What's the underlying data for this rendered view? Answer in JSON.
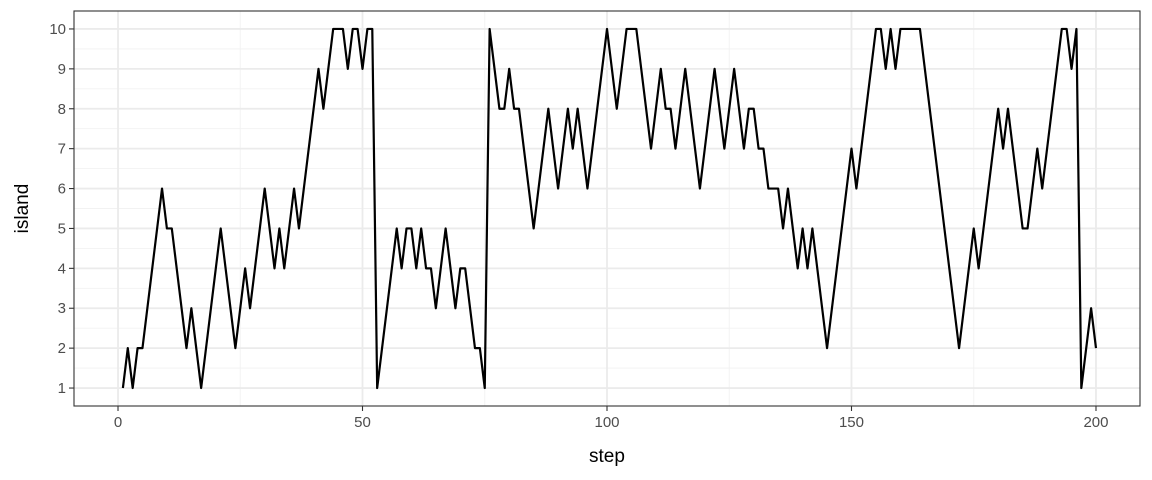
{
  "chart_data": {
    "type": "line",
    "xlabel": "step",
    "ylabel": "island",
    "xlim": [
      -9,
      209
    ],
    "ylim": [
      0.55,
      10.45
    ],
    "x_ticks": [
      0,
      50,
      100,
      150,
      200
    ],
    "y_ticks": [
      1,
      2,
      3,
      4,
      5,
      6,
      7,
      8,
      9,
      10
    ],
    "grid": true,
    "legend": "none",
    "line_color": "#000000",
    "series": [
      {
        "x": [
          1,
          2,
          3,
          4,
          5,
          6,
          7,
          8,
          9,
          10,
          11,
          12,
          13,
          14,
          15,
          16,
          17,
          18,
          19,
          20,
          21,
          22,
          23,
          24,
          25,
          26,
          27,
          28,
          29,
          30,
          31,
          32,
          33,
          34,
          35,
          36,
          37,
          38,
          39,
          40,
          41,
          42,
          43,
          44,
          45,
          46,
          47,
          48,
          49,
          50,
          51,
          52,
          53,
          54,
          55,
          56,
          57,
          58,
          59,
          60,
          61,
          62,
          63,
          64,
          65,
          66,
          67,
          68,
          69,
          70,
          71,
          72,
          73,
          74,
          75,
          76,
          77,
          78,
          79,
          80,
          81,
          82,
          83,
          84,
          85,
          86,
          87,
          88,
          89,
          90,
          91,
          92,
          93,
          94,
          95,
          96,
          97,
          98,
          99,
          100,
          101,
          102,
          103,
          104,
          105,
          106,
          107,
          108,
          109,
          110,
          111,
          112,
          113,
          114,
          115,
          116,
          117,
          118,
          119,
          120,
          121,
          122,
          123,
          124,
          125,
          126,
          127,
          128,
          129,
          130,
          131,
          132,
          133,
          134,
          135,
          136,
          137,
          138,
          139,
          140,
          141,
          142,
          143,
          144,
          145,
          146,
          147,
          148,
          149,
          150,
          151,
          152,
          153,
          154,
          155,
          156,
          157,
          158,
          159,
          160,
          161,
          162,
          163,
          164,
          165,
          166,
          167,
          168,
          169,
          170,
          171,
          172,
          173,
          174,
          175,
          176,
          177,
          178,
          179,
          180,
          181,
          182,
          183,
          184,
          185,
          186,
          187,
          188,
          189,
          190,
          191,
          192,
          193,
          194,
          195,
          196,
          197,
          198,
          199,
          200
        ],
        "values": [
          1,
          2,
          1,
          2,
          2,
          3,
          4,
          5,
          6,
          5,
          5,
          4,
          3,
          2,
          3,
          2,
          1,
          2,
          3,
          4,
          5,
          4,
          3,
          2,
          3,
          4,
          3,
          4,
          5,
          6,
          5,
          4,
          5,
          4,
          5,
          6,
          5,
          6,
          7,
          8,
          9,
          8,
          9,
          10,
          10,
          10,
          9,
          10,
          10,
          9,
          10,
          10,
          1,
          2,
          3,
          4,
          5,
          4,
          5,
          5,
          4,
          5,
          4,
          4,
          3,
          4,
          5,
          4,
          3,
          4,
          4,
          3,
          2,
          2,
          1,
          10,
          9,
          8,
          8,
          9,
          8,
          8,
          7,
          6,
          5,
          6,
          7,
          8,
          7,
          6,
          7,
          8,
          7,
          8,
          7,
          6,
          7,
          8,
          9,
          10,
          9,
          8,
          9,
          10,
          10,
          10,
          9,
          8,
          7,
          8,
          9,
          8,
          8,
          7,
          8,
          9,
          8,
          7,
          6,
          7,
          8,
          9,
          8,
          7,
          8,
          9,
          8,
          7,
          8,
          8,
          7,
          7,
          6,
          6,
          6,
          5,
          6,
          5,
          4,
          5,
          4,
          5,
          4,
          3,
          2,
          3,
          4,
          5,
          6,
          7,
          6,
          7,
          8,
          9,
          10,
          10,
          9,
          10,
          9,
          10,
          10,
          10,
          10,
          10,
          9,
          8,
          7,
          6,
          5,
          4,
          3,
          2,
          3,
          4,
          5,
          4,
          5,
          6,
          7,
          8,
          7,
          8,
          7,
          6,
          5,
          5,
          6,
          7,
          6,
          7,
          8,
          9,
          10,
          10,
          9,
          10,
          1,
          2,
          3,
          2
        ]
      }
    ]
  }
}
